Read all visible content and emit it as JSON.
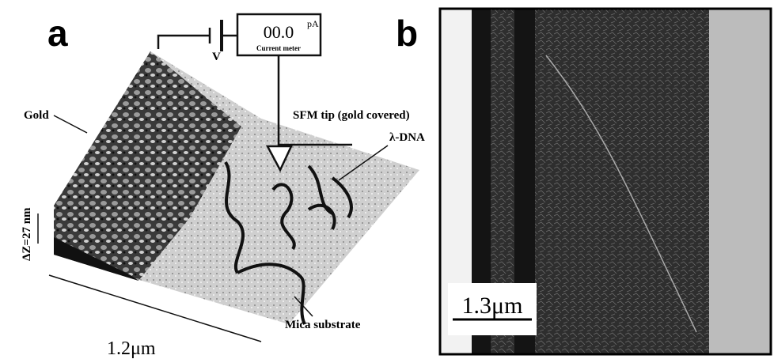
{
  "panels": {
    "a": {
      "label": "a",
      "meter_reading": "00.0",
      "meter_unit": "pA",
      "meter_name": "Current meter",
      "voltage": "V",
      "gold": "Gold",
      "tip": "SFM tip (gold covered)",
      "dna": "λ-DNA",
      "height": "ΔZ=27 nm",
      "substrate": "Mica substrate",
      "scale": "1.2μm"
    },
    "b": {
      "label": "b",
      "scale": "1.3μm"
    }
  }
}
